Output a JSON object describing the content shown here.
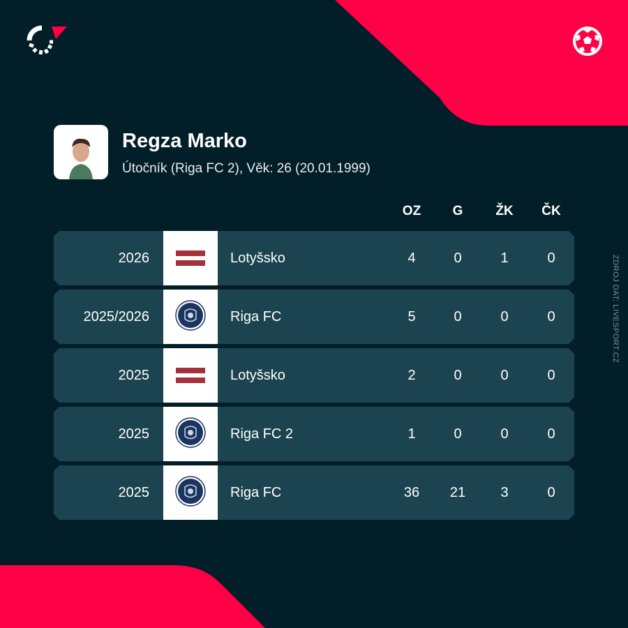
{
  "brand": {
    "accent": "#ff0046",
    "background": "#021e29",
    "row": "#1c4450",
    "logo_icon": "flashscore-logo",
    "sport_icon": "football-icon"
  },
  "player": {
    "name": "Regza Marko",
    "subtitle": "Útočník (Riga FC 2), Věk: 26 (20.01.1999)"
  },
  "columns": [
    "OZ",
    "G",
    "ŽK",
    "ČK"
  ],
  "rows": [
    {
      "season": "2026",
      "team": "Lotyšsko",
      "crest": "latvia-flag",
      "oz": "4",
      "g": "0",
      "zk": "1",
      "ck": "0"
    },
    {
      "season": "2025/2026",
      "team": "Riga FC",
      "crest": "riga-fc-crest",
      "oz": "5",
      "g": "0",
      "zk": "0",
      "ck": "0"
    },
    {
      "season": "2025",
      "team": "Lotyšsko",
      "crest": "latvia-flag",
      "oz": "2",
      "g": "0",
      "zk": "0",
      "ck": "0"
    },
    {
      "season": "2025",
      "team": "Riga FC 2",
      "crest": "riga-fc-crest",
      "oz": "1",
      "g": "0",
      "zk": "0",
      "ck": "0"
    },
    {
      "season": "2025",
      "team": "Riga FC",
      "crest": "riga-fc-crest",
      "oz": "36",
      "g": "21",
      "zk": "3",
      "ck": "0"
    }
  ],
  "source": "ZDROJ DAT: LIVESPORT.CZ"
}
